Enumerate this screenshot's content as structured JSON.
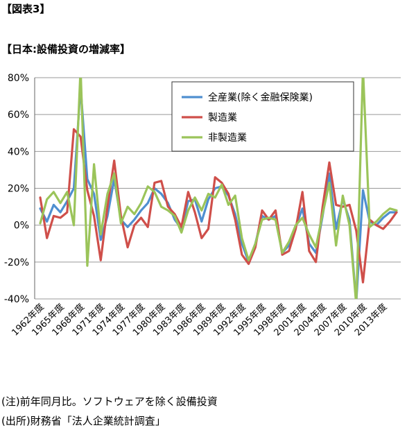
{
  "figure_label": "【図表3】",
  "notes": {
    "note": "(注)前年同月比。ソフトウェアを除く設備投資",
    "source": "(出所)財務省「法人企業統計調査」"
  },
  "colors": {
    "all_industries": "#4f8fd0",
    "manufacturing": "#cf4f4a",
    "non_manufacturing": "#9bc45a",
    "grid": "#999999"
  },
  "chart_data": {
    "type": "line",
    "title": "【日本:設備投資の増減率】",
    "xlabel": "",
    "ylabel": "",
    "ylim": [
      -40,
      80
    ],
    "y_ticks": [
      "-40%",
      "-20%",
      "0%",
      "20%",
      "40%",
      "60%",
      "80%"
    ],
    "y_tick_values": [
      -40,
      -20,
      0,
      20,
      40,
      60,
      80
    ],
    "grid": "horizontal",
    "legend_position": "top-right",
    "x": [
      1962,
      1963,
      1964,
      1965,
      1966,
      1967,
      1968,
      1969,
      1970,
      1971,
      1972,
      1973,
      1974,
      1975,
      1976,
      1977,
      1978,
      1979,
      1980,
      1981,
      1982,
      1983,
      1984,
      1985,
      1986,
      1987,
      1988,
      1989,
      1990,
      1991,
      1992,
      1993,
      1994,
      1995,
      1996,
      1997,
      1998,
      1999,
      2000,
      2001,
      2002,
      2003,
      2004,
      2005,
      2006,
      2007,
      2008,
      2009,
      2010,
      2011,
      2012,
      2013,
      2014,
      2015
    ],
    "x_tick_labels": [
      "1962年度",
      "1965年度",
      "1968年度",
      "1971年度",
      "1974年度",
      "1977年度",
      "1980年度",
      "1983年度",
      "1986年度",
      "1989年度",
      "1992年度",
      "1995年度",
      "1998年度",
      "2001年度",
      "2004年度",
      "2007年度",
      "2010年度",
      "2013年度"
    ],
    "x_tick_values": [
      1962,
      1965,
      1968,
      1971,
      1974,
      1977,
      1980,
      1983,
      1986,
      1989,
      1992,
      1995,
      1998,
      2001,
      2004,
      2007,
      2010,
      2013
    ],
    "series": [
      {
        "name": "全産業(除く金融保険業)",
        "color_key": "all_industries",
        "values": [
          9,
          2,
          11,
          7,
          13,
          20,
          75,
          25,
          17,
          -8,
          5,
          25,
          3,
          -1,
          3,
          8,
          12,
          20,
          17,
          12,
          3,
          -2,
          13,
          14,
          2,
          14,
          20,
          21,
          16,
          6,
          -10,
          -20,
          -10,
          5,
          3,
          5,
          -15,
          -11,
          -1,
          9,
          -10,
          -15,
          5,
          28,
          -2,
          14,
          3,
          -42,
          19,
          2,
          0,
          4,
          7,
          7
        ]
      },
      {
        "name": "製造業",
        "color_key": "manufacturing",
        "values": [
          15,
          -7,
          5,
          4,
          7,
          52,
          48,
          19,
          5,
          -19,
          10,
          35,
          5,
          -12,
          0,
          4,
          -1,
          23,
          24,
          10,
          6,
          -1,
          18,
          7,
          -7,
          -2,
          26,
          23,
          17,
          3,
          -16,
          -21,
          -12,
          8,
          3,
          8,
          -16,
          -14,
          -2,
          18,
          -14,
          -20,
          10,
          34,
          11,
          10,
          11,
          -3,
          -31,
          3,
          0,
          -2,
          2,
          7
        ]
      },
      {
        "name": "非製造業",
        "color_key": "non_manufacturing",
        "values": [
          1,
          14,
          18,
          12,
          18,
          0,
          85,
          -22,
          33,
          -5,
          17,
          28,
          1,
          10,
          6,
          12,
          21,
          18,
          10,
          8,
          5,
          -4,
          8,
          15,
          8,
          17,
          15,
          22,
          11,
          16,
          -7,
          -19,
          -10,
          3,
          4,
          3,
          -15,
          -9,
          0,
          4,
          -5,
          -12,
          6,
          23,
          -11,
          16,
          0,
          -43,
          85,
          -1,
          2,
          6,
          9,
          8
        ]
      }
    ]
  }
}
